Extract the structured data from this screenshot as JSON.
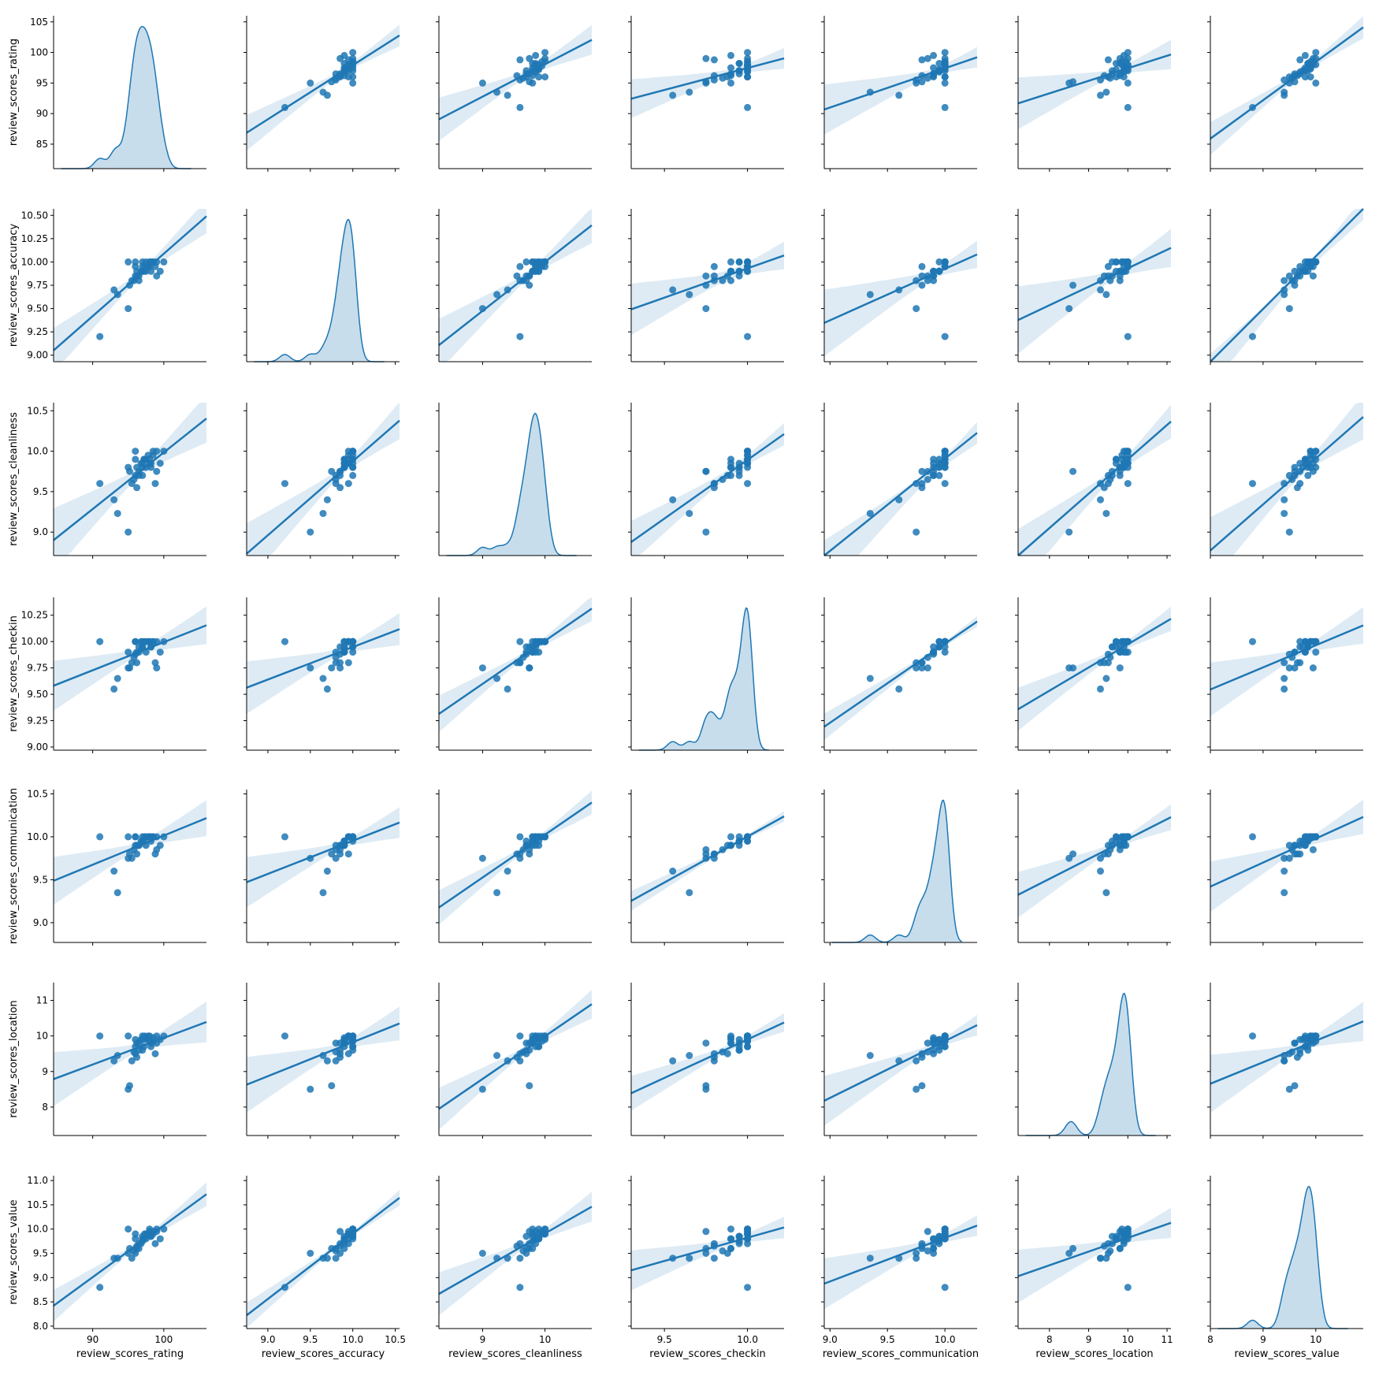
{
  "figure": {
    "type": "pairplot",
    "variables": [
      "review_scores_rating",
      "review_scores_accuracy",
      "review_scores_cleanliness",
      "review_scores_checkin",
      "review_scores_communication",
      "review_scores_location",
      "review_scores_value"
    ],
    "colors": {
      "point": "#1f77b4",
      "line": "#1f77b4",
      "band": "#1f77b4",
      "axis": "#000000"
    },
    "diagonal": "kde",
    "off_diagonal": "scatter with linear regression fit and confidence band"
  },
  "chart_data": {
    "type": "scatter",
    "variables": [
      "review_scores_rating",
      "review_scores_accuracy",
      "review_scores_cleanliness",
      "review_scores_checkin",
      "review_scores_communication",
      "review_scores_location",
      "review_scores_value"
    ],
    "axis_ranges": [
      [
        84.5,
        106
      ],
      [
        8.75,
        10.55
      ],
      [
        8.3,
        10.75
      ],
      [
        9.3,
        10.22
      ],
      [
        8.95,
        10.28
      ],
      [
        7.2,
        11.1
      ],
      [
        8.0,
        10.9
      ]
    ],
    "y_axis_ranges": [
      [
        81,
        106
      ],
      [
        8.93,
        10.57
      ],
      [
        8.71,
        10.6
      ],
      [
        8.97,
        10.42
      ],
      [
        8.77,
        10.55
      ],
      [
        7.2,
        11.5
      ],
      [
        7.95,
        11.1
      ]
    ],
    "row_ticks": [
      [
        85,
        90,
        95,
        100,
        105
      ],
      [
        9.0,
        9.25,
        9.5,
        9.75,
        10.0,
        10.25,
        10.5
      ],
      [
        9.0,
        9.5,
        10.0,
        10.5
      ],
      [
        9.0,
        9.25,
        9.5,
        9.75,
        10.0,
        10.25
      ],
      [
        9.0,
        9.5,
        10.0,
        10.5
      ],
      [
        8,
        9,
        10,
        11
      ],
      [
        8.0,
        8.5,
        9.0,
        9.5,
        10.0,
        10.5,
        11.0
      ]
    ],
    "row_tick_labels": [
      [
        "85",
        "90",
        "95",
        "100",
        "105"
      ],
      [
        "9.00",
        "9.25",
        "9.50",
        "9.75",
        "10.00",
        "10.25",
        "10.50"
      ],
      [
        "9.0",
        "9.5",
        "10.0",
        "10.5"
      ],
      [
        "9.00",
        "9.25",
        "9.50",
        "9.75",
        "10.00",
        "10.25"
      ],
      [
        "9.0",
        "9.5",
        "10.0",
        "10.5"
      ],
      [
        "8",
        "9",
        "10",
        "11"
      ],
      [
        "8.0",
        "8.5",
        "9.0",
        "9.5",
        "10.0",
        "10.5",
        "11.0"
      ]
    ],
    "col_ticks": [
      [
        90,
        100
      ],
      [
        9.0,
        9.5,
        10.0,
        10.5
      ],
      [
        9,
        10
      ],
      [
        9.5,
        10.0
      ],
      [
        9.0,
        9.5,
        10.0
      ],
      [
        8,
        9,
        10,
        11
      ],
      [
        8,
        9,
        10
      ]
    ],
    "col_tick_labels": [
      [
        "90",
        "100"
      ],
      [
        "9.0",
        "9.5",
        "10.0",
        "10.5"
      ],
      [
        "9",
        "10"
      ],
      [
        "9.5",
        "10.0"
      ],
      [
        "9.0",
        "9.5",
        "10.0"
      ],
      [
        "8",
        "9",
        "10",
        "11"
      ],
      [
        "8",
        "9",
        "10"
      ]
    ],
    "points": [
      [
        91,
        9.2,
        9.6,
        10,
        10,
        10,
        8.8
      ],
      [
        93,
        9.7,
        9.4,
        9.55,
        9.6,
        9.3,
        9.4
      ],
      [
        93.5,
        9.65,
        9.23,
        9.65,
        9.35,
        9.45,
        9.4
      ],
      [
        95,
        9.5,
        9.0,
        9.75,
        9.75,
        8.5,
        9.5
      ],
      [
        95.2,
        9.75,
        9.75,
        9.75,
        9.8,
        8.6,
        9.6
      ],
      [
        95.5,
        9.8,
        9.6,
        9.8,
        9.75,
        9.3,
        9.4
      ],
      [
        96,
        9.85,
        9.7,
        9.88,
        9.9,
        9.5,
        9.5
      ],
      [
        96.2,
        9.9,
        9.8,
        9.9,
        9.9,
        9.8,
        9.6
      ],
      [
        96.5,
        9.85,
        9.75,
        9.95,
        9.9,
        9.6,
        9.7
      ],
      [
        96.8,
        9.9,
        9.85,
        10,
        9.95,
        9.9,
        9.7
      ],
      [
        97,
        9.95,
        9.85,
        10,
        10,
        10,
        9.8
      ],
      [
        97.2,
        9.9,
        9.9,
        10,
        9.95,
        9.7,
        9.8
      ],
      [
        97.5,
        10,
        9.8,
        10,
        10,
        9.9,
        9.9
      ],
      [
        97.8,
        9.95,
        9.95,
        10,
        10,
        10,
        9.9
      ],
      [
        98,
        10,
        9.9,
        10,
        10,
        9.85,
        10
      ],
      [
        98.2,
        9.9,
        9.8,
        9.95,
        9.95,
        9.8,
        9.85
      ],
      [
        98.5,
        10,
        10,
        10,
        10,
        9.95,
        9.9
      ],
      [
        98.8,
        9.95,
        9.6,
        9.8,
        9.8,
        9.5,
        9.7
      ],
      [
        99,
        10,
        10,
        10,
        10,
        10,
        10
      ],
      [
        99.5,
        9.9,
        9.85,
        9.9,
        9.9,
        9.9,
        9.8
      ],
      [
        100,
        10,
        10,
        10,
        10,
        10,
        10
      ],
      [
        96,
        10,
        9.9,
        10,
        10,
        9.7,
        9.8
      ],
      [
        96.5,
        9.8,
        9.7,
        9.9,
        9.9,
        9.8,
        9.6
      ],
      [
        97,
        9.9,
        9.8,
        9.95,
        9.95,
        9.9,
        9.75
      ],
      [
        98,
        9.95,
        9.85,
        10,
        10,
        10,
        9.95
      ],
      [
        95,
        10,
        9.8,
        9.9,
        10,
        10,
        10
      ],
      [
        96,
        9.95,
        10,
        10,
        10,
        9.9,
        9.9
      ],
      [
        97,
        10,
        9.7,
        9.95,
        9.95,
        9.6,
        9.85
      ],
      [
        99,
        9.85,
        9.75,
        9.75,
        9.85,
        9.8,
        9.95
      ],
      [
        97.5,
        9.9,
        9.9,
        9.9,
        9.9,
        9.95,
        9.8
      ],
      [
        98.5,
        10,
        9.95,
        10,
        10,
        9.85,
        9.95
      ],
      [
        96.2,
        9.85,
        9.55,
        9.8,
        9.8,
        9.4,
        9.65
      ],
      [
        97.3,
        9.95,
        9.9,
        10,
        10,
        10,
        9.9
      ],
      [
        98.2,
        10,
        9.85,
        9.95,
        10,
        9.7,
        9.85
      ],
      [
        95.8,
        9.8,
        9.65,
        9.85,
        9.85,
        9.55,
        9.55
      ]
    ],
    "diagonal_kde_peaks": [
      97,
      9.92,
      9.82,
      9.97,
      9.97,
      9.82,
      9.83
    ]
  }
}
